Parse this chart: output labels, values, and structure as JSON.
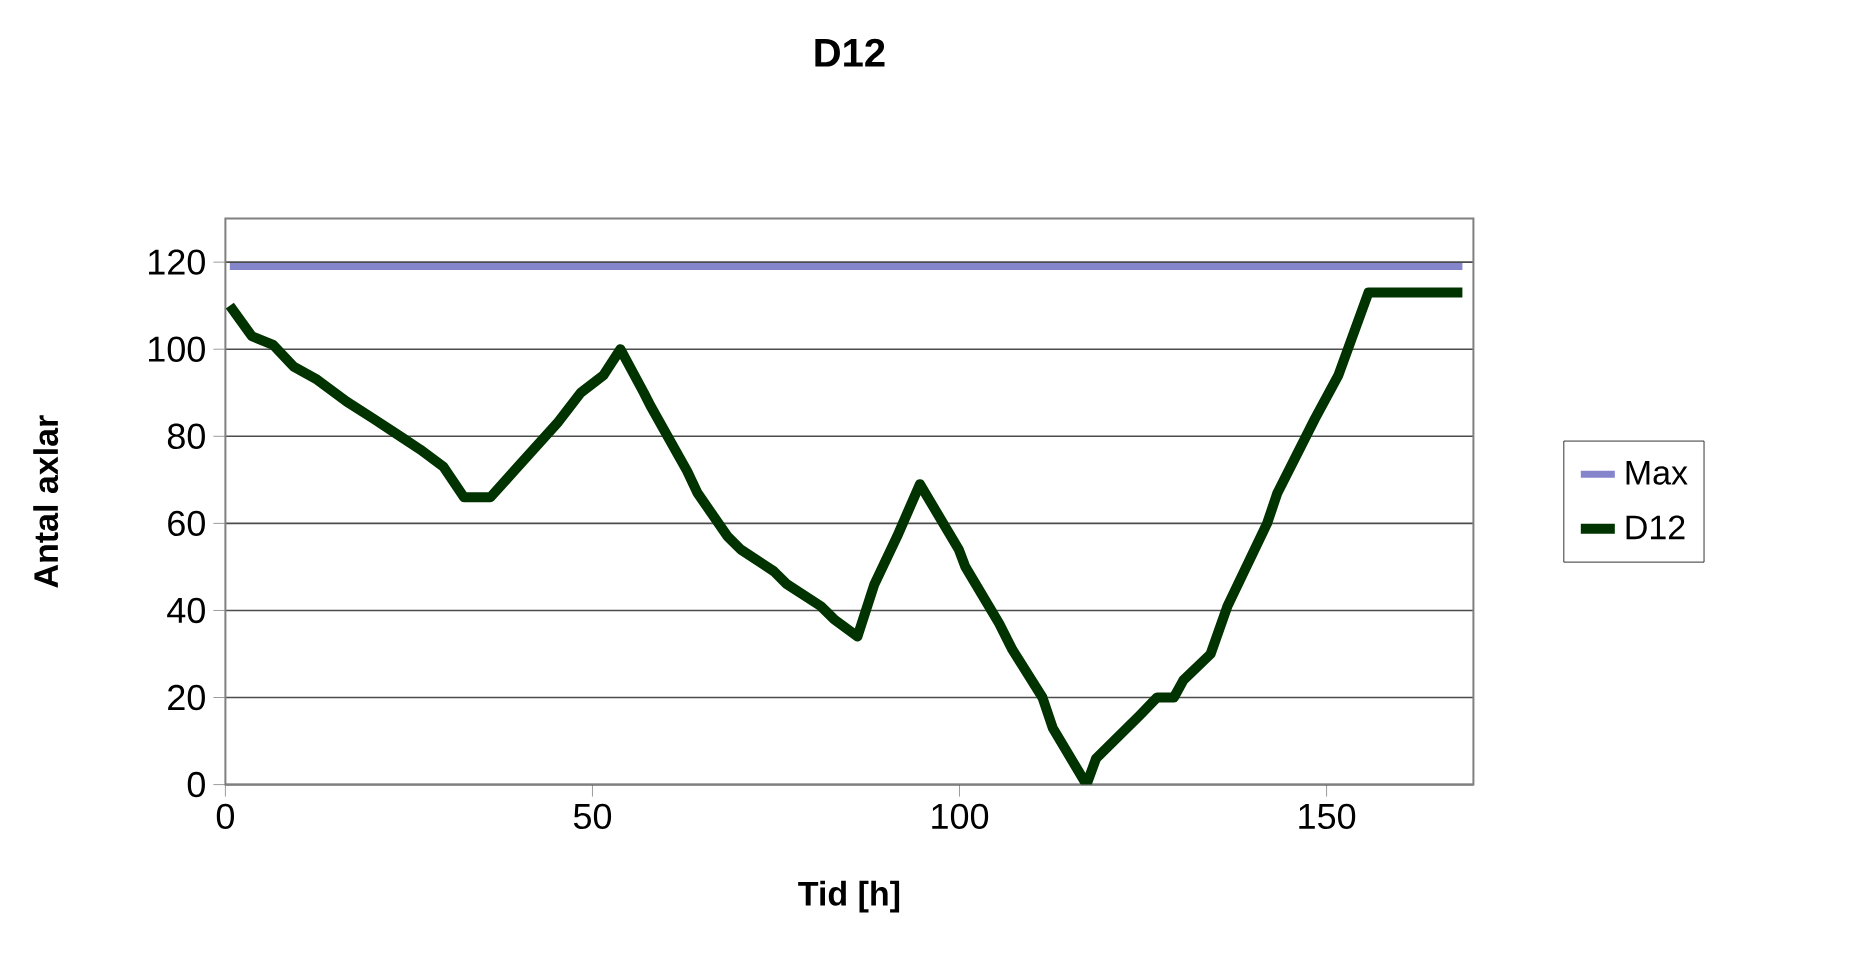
{
  "chart_data": {
    "type": "line",
    "title": "D12",
    "xlabel": "Tid [h]",
    "ylabel": "Antal axlar",
    "xlim": [
      0,
      170
    ],
    "ylim": [
      0,
      130
    ],
    "xticks": [
      0,
      50,
      100,
      150
    ],
    "yticks": [
      0,
      20,
      40,
      60,
      80,
      100,
      120
    ],
    "grid": "y",
    "legend": "right",
    "series": [
      {
        "name": "Max",
        "color": "#8585cc",
        "x": [
          0.6,
          168.5
        ],
        "values": [
          119,
          119
        ]
      },
      {
        "name": "D12",
        "color": "#003300",
        "x": [
          0.6,
          3.6,
          6.5,
          9.3,
          12.5,
          16.5,
          20.2,
          23.8,
          26.5,
          29.7,
          32.5,
          36.1,
          39.3,
          45.2,
          48.4,
          51.5,
          53.8,
          57,
          57.9,
          62.9,
          64.3,
          68.4,
          70.2,
          74.7,
          76.5,
          81.1,
          82.9,
          86.1,
          88.4,
          91.5,
          94.6,
          99.9,
          100.8,
          105.4,
          107.2,
          111.3,
          112.7,
          117.3,
          118.6,
          124.6,
          126.9,
          129.2,
          130.5,
          134.2,
          136.5,
          141.9,
          143.3,
          148.4,
          151.6,
          155.7,
          168.5
        ],
        "values": [
          110,
          103,
          101,
          96,
          93,
          88,
          84,
          80,
          77,
          73,
          66,
          66,
          72,
          83,
          90,
          94,
          100,
          90,
          87,
          72,
          67,
          57,
          54,
          49,
          46,
          41,
          38,
          34,
          46,
          57,
          69,
          54,
          50,
          37,
          31,
          20,
          13,
          0,
          6,
          16,
          20,
          20,
          24,
          30,
          41,
          60,
          67,
          84,
          94,
          113,
          113
        ]
      }
    ]
  }
}
